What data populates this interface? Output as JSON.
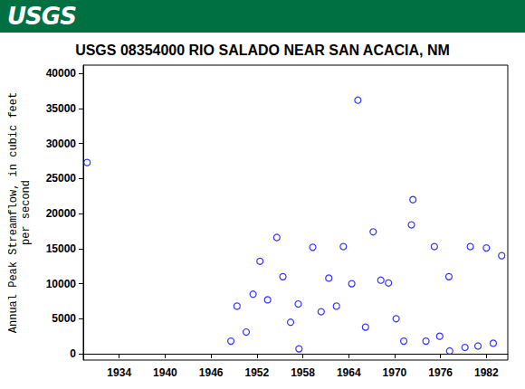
{
  "header": {
    "logo": "USGS"
  },
  "chart_data": {
    "type": "scatter",
    "title": "USGS 08354000 RIO SALADO NEAR SAN ACACIA, NM",
    "y_label": "Annual Peak Streamflow, in cubic feet\nper second",
    "x": [
      1929.8,
      1948.6,
      1949.4,
      1950.6,
      1951.5,
      1952.4,
      1953.4,
      1954.6,
      1955.4,
      1956.4,
      1957.4,
      1957.5,
      1959.3,
      1960.4,
      1961.4,
      1962.4,
      1963.3,
      1964.4,
      1965.2,
      1966.2,
      1967.2,
      1968.2,
      1969.2,
      1970.2,
      1971.2,
      1972.2,
      1972.4,
      1974.1,
      1975.2,
      1975.9,
      1977.1,
      1977.2,
      1979.2,
      1979.9,
      1980.9,
      1982.0,
      1982.9,
      1984.0
    ],
    "values": [
      27300,
      1800,
      6800,
      3100,
      8500,
      13200,
      7700,
      16600,
      11000,
      4500,
      7100,
      700,
      15200,
      6000,
      10800,
      6800,
      15300,
      10000,
      36200,
      3800,
      17400,
      10500,
      10100,
      5000,
      1800,
      18400,
      22000,
      1800,
      15300,
      2500,
      11000,
      400,
      900,
      15300,
      1100,
      15100,
      1500,
      14000
    ],
    "color": "#0000ff",
    "marker": "circle",
    "xlim": [
      1929.3,
      1984.8
    ],
    "xticks": [
      1934,
      1940,
      1946,
      1952,
      1958,
      1964,
      1970,
      1976,
      1982
    ],
    "ylim": [
      -900,
      41200
    ],
    "yticks": [
      0,
      5000,
      10000,
      15000,
      20000,
      25000,
      30000,
      35000,
      40000
    ],
    "grid": false
  }
}
